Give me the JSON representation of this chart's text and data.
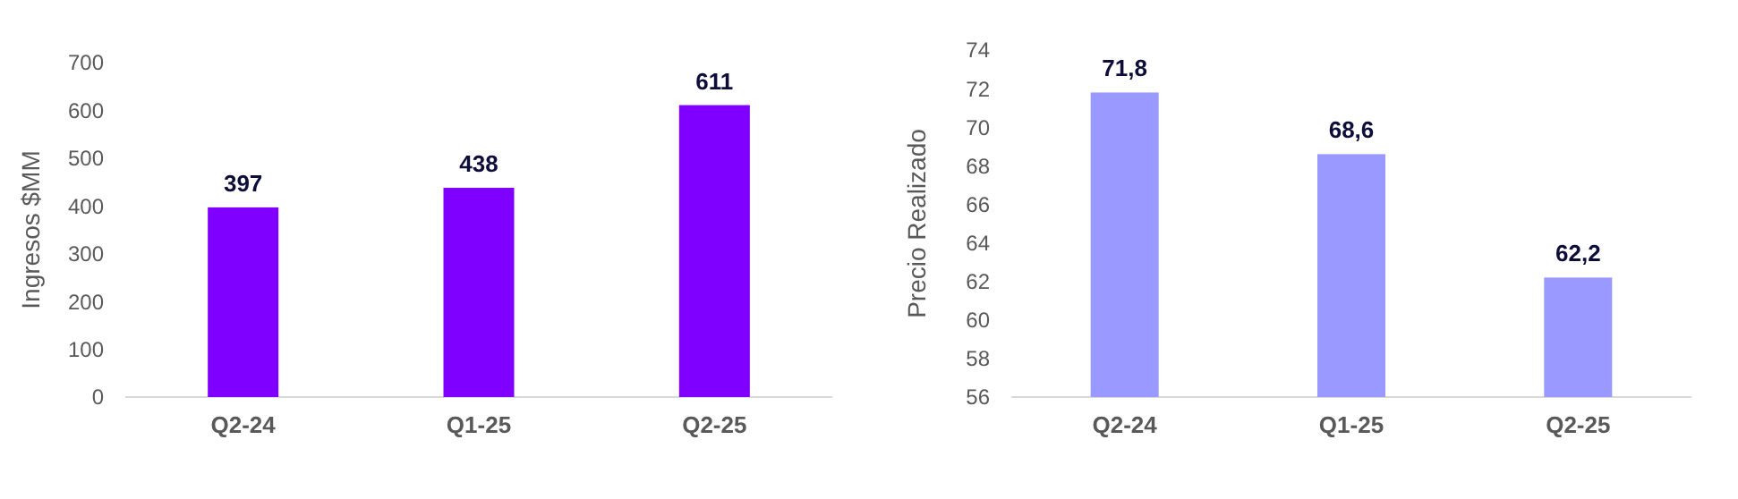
{
  "chart_data": [
    {
      "type": "bar",
      "ylabel": "Ingresos $MM",
      "categories": [
        "Q2-24",
        "Q1-25",
        "Q2-25"
      ],
      "values": [
        397,
        438,
        611
      ],
      "color": "#8000ff",
      "ylim": [
        0,
        700
      ],
      "yticks": [
        0,
        100,
        200,
        300,
        400,
        500,
        600,
        700
      ],
      "data_labels": true
    },
    {
      "type": "bar",
      "ylabel": "Precio Realizado",
      "categories": [
        "Q2-24",
        "Q1-25",
        "Q2-25"
      ],
      "values": [
        71.8,
        68.6,
        62.2
      ],
      "value_labels": [
        "71,8",
        "68,6",
        "62,2"
      ],
      "color": "#9999ff",
      "ylim": [
        56,
        74
      ],
      "yticks": [
        56,
        58,
        60,
        62,
        64,
        66,
        68,
        70,
        72,
        74
      ]
    }
  ]
}
